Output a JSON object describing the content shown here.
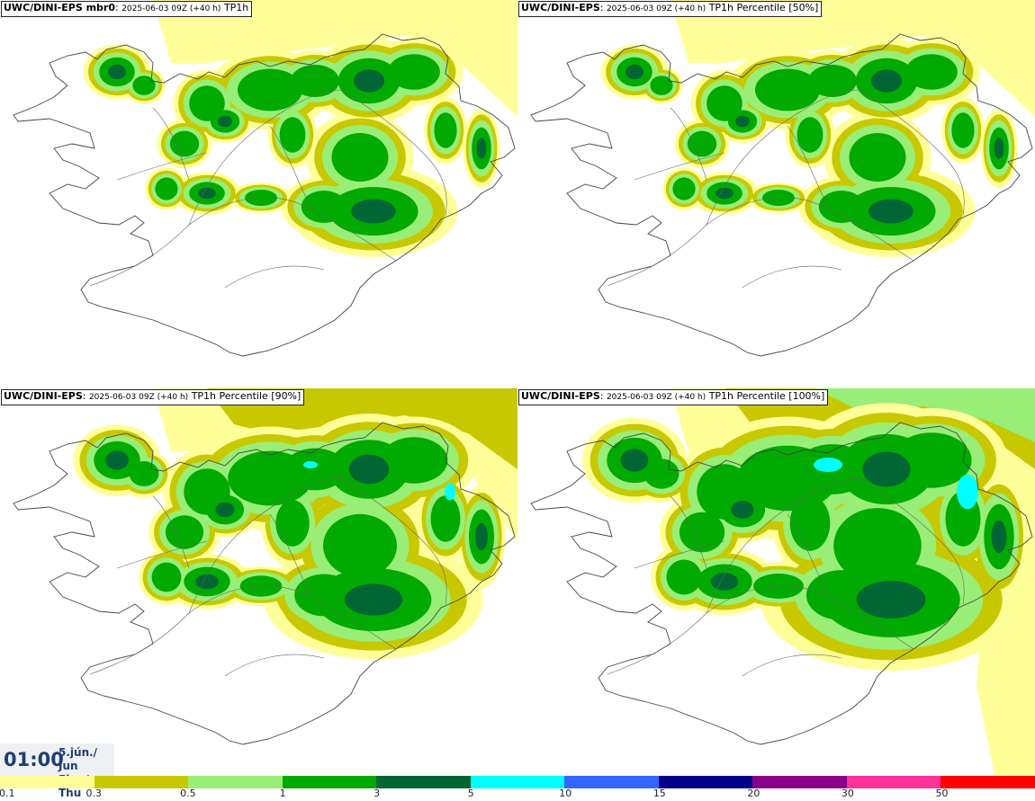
{
  "panels": [
    {
      "title_bold": "UWC/DINI-EPS mbr0",
      "title_date": "2025-06-03 09Z (+40 h)",
      "title_rest": "TP1h",
      "level": 1
    },
    {
      "title_bold": "UWC/DINI-EPS",
      "title_date": "2025-06-03 09Z (+40 h)",
      "title_rest": "TP1h Percentile [50%]",
      "level": 1
    },
    {
      "title_bold": "UWC/DINI-EPS",
      "title_date": "2025-06-03 09Z (+40 h)",
      "title_rest": "TP1h Percentile [90%]",
      "level": 2
    },
    {
      "title_bold": "UWC/DINI-EPS",
      "title_date": "2025-06-03 09Z (+40 h)",
      "title_rest": "TP1h Percentile [100%]",
      "level": 3
    }
  ],
  "time": {
    "clock": "01:00",
    "date_line1": "5.jún./ Jun",
    "date_line2": "Fim./ Thu"
  },
  "legend": {
    "colors": [
      "#ffff99",
      "#c8c800",
      "#99ee77",
      "#00aa00",
      "#006633",
      "#00ffff",
      "#3366ff",
      "#000088",
      "#880088",
      "#ff3399",
      "#ff0000"
    ],
    "ticks": [
      "0.1",
      "0.3",
      "0.5",
      "1",
      "3",
      "5",
      "10",
      "15",
      "20",
      "30",
      "50"
    ]
  }
}
